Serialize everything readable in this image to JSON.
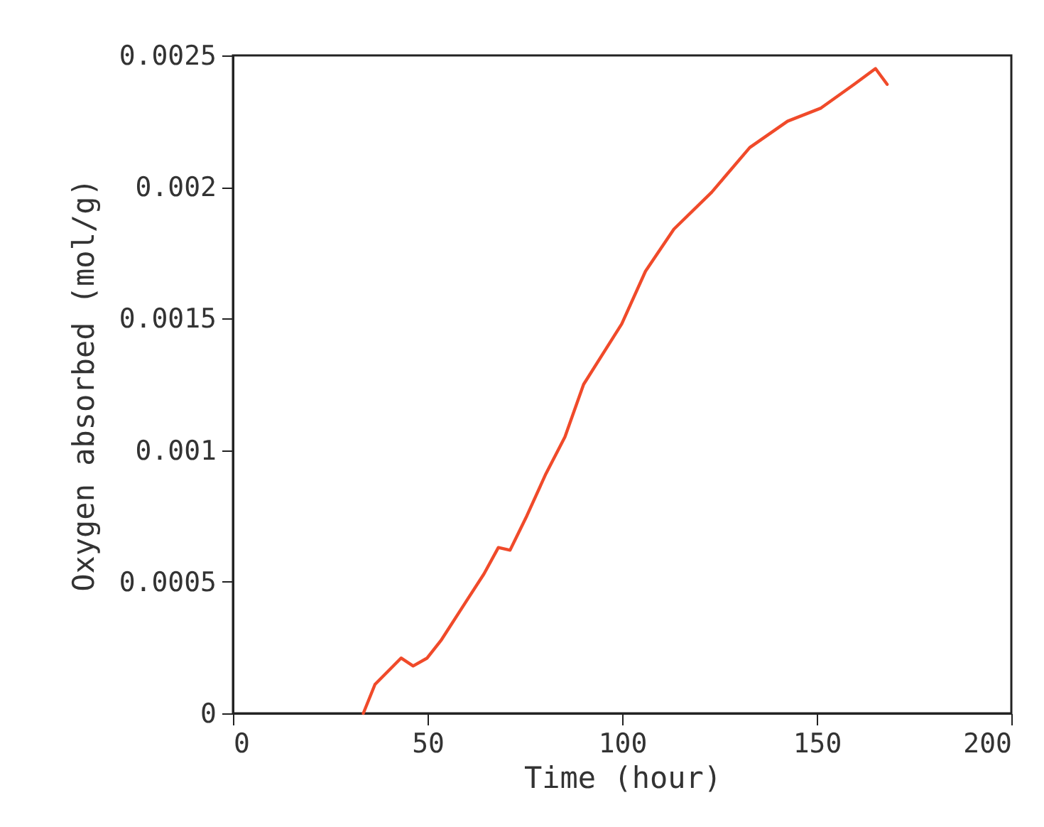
{
  "chart_data": {
    "type": "line",
    "xlabel": "Time (hour)",
    "ylabel": "Oxygen absorbed (mol/g)",
    "x": [
      33.5,
      36.5,
      43.2,
      46.3,
      49.9,
      53.6,
      59.7,
      64.5,
      68.2,
      71.2,
      75.5,
      80.4,
      85.3,
      90.1,
      99.9,
      106,
      113.3,
      123,
      132.8,
      142.5,
      151.1,
      159.6,
      165.1,
      168.1
    ],
    "series": [
      {
        "color": "#f04a2a",
        "values": [
          0,
          0.00011,
          0.00021,
          0.00018,
          0.00021,
          0.00028,
          0.00042,
          0.00053,
          0.00063,
          0.00062,
          0.00075,
          0.00091,
          0.00105,
          0.00125,
          0.00148,
          0.00168,
          0.00184,
          0.00198,
          0.00215,
          0.00225,
          0.0023,
          0.00239,
          0.00245,
          0.00239
        ]
      }
    ],
    "xlim": [
      0,
      200
    ],
    "xticks": [
      0,
      50,
      100,
      150,
      200
    ],
    "ylim": [
      0,
      0.0025
    ],
    "yticks": [
      0,
      0.0005,
      0.001,
      0.0015,
      0.002,
      0.0025
    ],
    "grid": false,
    "marker": "none",
    "line_style": "solid"
  }
}
